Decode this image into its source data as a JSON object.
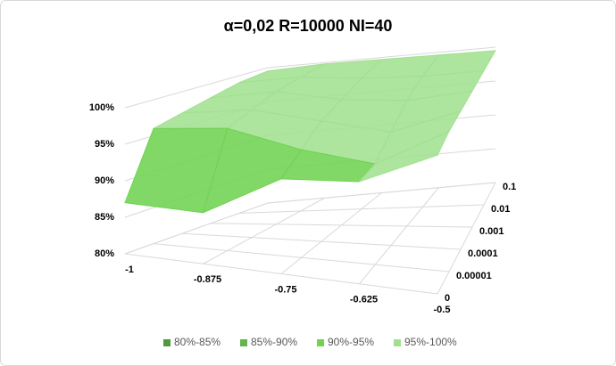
{
  "chart_data": {
    "type": "surface",
    "title": "α=0,02    R=10000    NI=40",
    "x_categories": [
      "-1",
      "-0.875",
      "-0.75",
      "-0.625",
      "-0.5"
    ],
    "depth_categories": [
      "0",
      "0.00001",
      "0.0001",
      "0.001",
      "0.01",
      "0.1"
    ],
    "values": [
      [
        87,
        87,
        93,
        94,
        99
      ],
      [
        96,
        97,
        95,
        94,
        99.5
      ],
      [
        97,
        98,
        97,
        96,
        99.5
      ],
      [
        98,
        99,
        98,
        98,
        99.5
      ],
      [
        99,
        99.5,
        99,
        99,
        99.5
      ],
      [
        99.5,
        99.8,
        99.7,
        99.6,
        99.5
      ]
    ],
    "zlim": [
      80,
      100
    ],
    "zticks": [
      {
        "value": 80,
        "label": "80%"
      },
      {
        "value": 85,
        "label": "85%"
      },
      {
        "value": 90,
        "label": "90%"
      },
      {
        "value": 95,
        "label": "95%"
      },
      {
        "value": 100,
        "label": "100%"
      }
    ],
    "legend": [
      {
        "name": "80%-85%",
        "color": "#4f9a3d"
      },
      {
        "name": "85%-90%",
        "color": "#63b54c"
      },
      {
        "name": "90%-95%",
        "color": "#70d352"
      },
      {
        "name": "95%-100%",
        "color": "#a2e091"
      }
    ],
    "legend_position": "bottom",
    "grid": true
  }
}
